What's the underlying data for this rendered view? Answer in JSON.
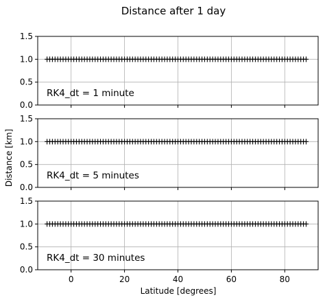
{
  "figure": {
    "title": "Distance after 1 day",
    "ylabel": "Distance [km]",
    "xlabel": "Latitude [degrees]"
  },
  "chart_data": [
    {
      "type": "scatter",
      "marker": "+",
      "color": "#000000",
      "annotation": "RK4_dt = 1 minute",
      "xlim": [
        -12.5,
        92.5
      ],
      "ylim": [
        0.0,
        1.5
      ],
      "xticks": [
        0,
        20,
        40,
        60,
        80
      ],
      "xtick_labels": [
        "0",
        "20",
        "40",
        "60",
        "80"
      ],
      "yticks": [
        0.0,
        0.5,
        1.0,
        1.5
      ],
      "ytick_labels": [
        "0.0",
        "0.5",
        "1.0",
        "1.5"
      ],
      "grid": true,
      "x": [
        -9,
        -8,
        -7,
        -6,
        -5,
        -4,
        -3,
        -2,
        -1,
        0,
        1,
        2,
        3,
        4,
        5,
        6,
        7,
        8,
        9,
        10,
        11,
        12,
        13,
        14,
        15,
        16,
        17,
        18,
        19,
        20,
        21,
        22,
        23,
        24,
        25,
        26,
        27,
        28,
        29,
        30,
        31,
        32,
        33,
        34,
        35,
        36,
        37,
        38,
        39,
        40,
        41,
        42,
        43,
        44,
        45,
        46,
        47,
        48,
        49,
        50,
        51,
        52,
        53,
        54,
        55,
        56,
        57,
        58,
        59,
        60,
        61,
        62,
        63,
        64,
        65,
        66,
        67,
        68,
        69,
        70,
        71,
        72,
        73,
        74,
        75,
        76,
        77,
        78,
        79,
        80,
        81,
        82,
        83,
        84,
        85,
        86,
        87,
        88
      ],
      "y_constant": 1.0
    },
    {
      "type": "scatter",
      "marker": "+",
      "color": "#000000",
      "annotation": "RK4_dt = 5 minutes",
      "xlim": [
        -12.5,
        92.5
      ],
      "ylim": [
        0.0,
        1.5
      ],
      "xticks": [
        0,
        20,
        40,
        60,
        80
      ],
      "xtick_labels": [
        "0",
        "20",
        "40",
        "60",
        "80"
      ],
      "yticks": [
        0.0,
        0.5,
        1.0,
        1.5
      ],
      "ytick_labels": [
        "0.0",
        "0.5",
        "1.0",
        "1.5"
      ],
      "grid": true,
      "x": [
        -9,
        -8,
        -7,
        -6,
        -5,
        -4,
        -3,
        -2,
        -1,
        0,
        1,
        2,
        3,
        4,
        5,
        6,
        7,
        8,
        9,
        10,
        11,
        12,
        13,
        14,
        15,
        16,
        17,
        18,
        19,
        20,
        21,
        22,
        23,
        24,
        25,
        26,
        27,
        28,
        29,
        30,
        31,
        32,
        33,
        34,
        35,
        36,
        37,
        38,
        39,
        40,
        41,
        42,
        43,
        44,
        45,
        46,
        47,
        48,
        49,
        50,
        51,
        52,
        53,
        54,
        55,
        56,
        57,
        58,
        59,
        60,
        61,
        62,
        63,
        64,
        65,
        66,
        67,
        68,
        69,
        70,
        71,
        72,
        73,
        74,
        75,
        76,
        77,
        78,
        79,
        80,
        81,
        82,
        83,
        84,
        85,
        86,
        87,
        88
      ],
      "y_constant": 1.0
    },
    {
      "type": "scatter",
      "marker": "+",
      "color": "#000000",
      "annotation": "RK4_dt = 30 minutes",
      "xlim": [
        -12.5,
        92.5
      ],
      "ylim": [
        0.0,
        1.5
      ],
      "xticks": [
        0,
        20,
        40,
        60,
        80
      ],
      "xtick_labels": [
        "0",
        "20",
        "40",
        "60",
        "80"
      ],
      "yticks": [
        0.0,
        0.5,
        1.0,
        1.5
      ],
      "ytick_labels": [
        "0.0",
        "0.5",
        "1.0",
        "1.5"
      ],
      "grid": true,
      "x": [
        -9,
        -8,
        -7,
        -6,
        -5,
        -4,
        -3,
        -2,
        -1,
        0,
        1,
        2,
        3,
        4,
        5,
        6,
        7,
        8,
        9,
        10,
        11,
        12,
        13,
        14,
        15,
        16,
        17,
        18,
        19,
        20,
        21,
        22,
        23,
        24,
        25,
        26,
        27,
        28,
        29,
        30,
        31,
        32,
        33,
        34,
        35,
        36,
        37,
        38,
        39,
        40,
        41,
        42,
        43,
        44,
        45,
        46,
        47,
        48,
        49,
        50,
        51,
        52,
        53,
        54,
        55,
        56,
        57,
        58,
        59,
        60,
        61,
        62,
        63,
        64,
        65,
        66,
        67,
        68,
        69,
        70,
        71,
        72,
        73,
        74,
        75,
        76,
        77,
        78,
        79,
        80,
        81,
        82,
        83,
        84,
        85,
        86,
        87,
        88
      ],
      "y_constant": 1.0
    }
  ]
}
